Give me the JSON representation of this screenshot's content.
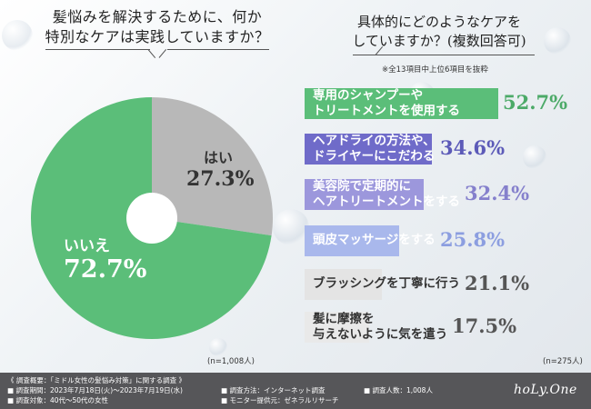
{
  "left_title": [
    "髪悩みを解決するために、何か",
    "特別なケアは実践していますか？"
  ],
  "right_title": [
    "具体的にどのようなケアを",
    "していますか？(複数回答可)"
  ],
  "note_top": "※全13項目中上位6項目を抜粋",
  "chart_data": [
    {
      "type": "pie",
      "title": "髪悩みを解決するために、何か特別なケアは実践していますか？",
      "slices": [
        {
          "label": "はい",
          "value": 27.3,
          "display": "27.3%",
          "color": "#b8b8b8"
        },
        {
          "label": "いいえ",
          "value": 72.7,
          "display": "72.7%",
          "color": "#5bbe79"
        }
      ],
      "sample": "(n=1,008人)"
    },
    {
      "type": "bar",
      "title": "具体的にどのようなケアをしていますか？(複数回答可)",
      "xlim": [
        0,
        52.7
      ],
      "items": [
        {
          "lines": [
            "専用のシャンプーや",
            "トリートメントを使用する"
          ],
          "value": 52.7,
          "display": "52.7%",
          "color": "#5bbe79",
          "text_color": "#ffffff",
          "pct_color": "#4caa68"
        },
        {
          "lines": [
            "ヘアドライの方法や、",
            "ドライヤーにこだわる"
          ],
          "value": 34.6,
          "display": "34.6%",
          "color": "#6f6bc9",
          "text_color": "#ffffff",
          "pct_color": "#5c5ab8"
        },
        {
          "lines": [
            "美容院で定期的に",
            "ヘアトリートメントをする"
          ],
          "value": 32.4,
          "display": "32.4%",
          "color": "#9c97dc",
          "text_color": "#ffffff",
          "pct_color": "#8580cc"
        },
        {
          "lines": [
            "頭皮マッサージをする"
          ],
          "value": 25.8,
          "display": "25.8%",
          "color": "#a9b8ec",
          "text_color": "#ffffff",
          "pct_color": "#8c9ee0"
        },
        {
          "lines": [
            "ブラッシングを丁寧に行う"
          ],
          "value": 21.1,
          "display": "21.1%",
          "color": "#e4e4e4",
          "text_color": "#333333",
          "pct_color": "#555555"
        },
        {
          "lines": [
            "髪に摩擦を",
            "与えないように気を遣う"
          ],
          "value": 17.5,
          "display": "17.5%",
          "color": "#e9e9e9",
          "text_color": "#333333",
          "pct_color": "#555555"
        }
      ],
      "sample": "(n=275人)"
    }
  ],
  "footer": {
    "heading": "《 調査概要：「ミドル女性の髪悩み対策」に関する調査 》",
    "period": "■ 調査期間：2023年7月18日(火)～2023年7月19日(水)",
    "target": "■ 調査対象：40代～50代の女性",
    "method": "■ 調査方法：インターネット調査",
    "provider": "■ モニター提供元：ゼネラルリサーチ",
    "count": "■ 調査人数：1,008人",
    "logo": "hoLy.One"
  }
}
